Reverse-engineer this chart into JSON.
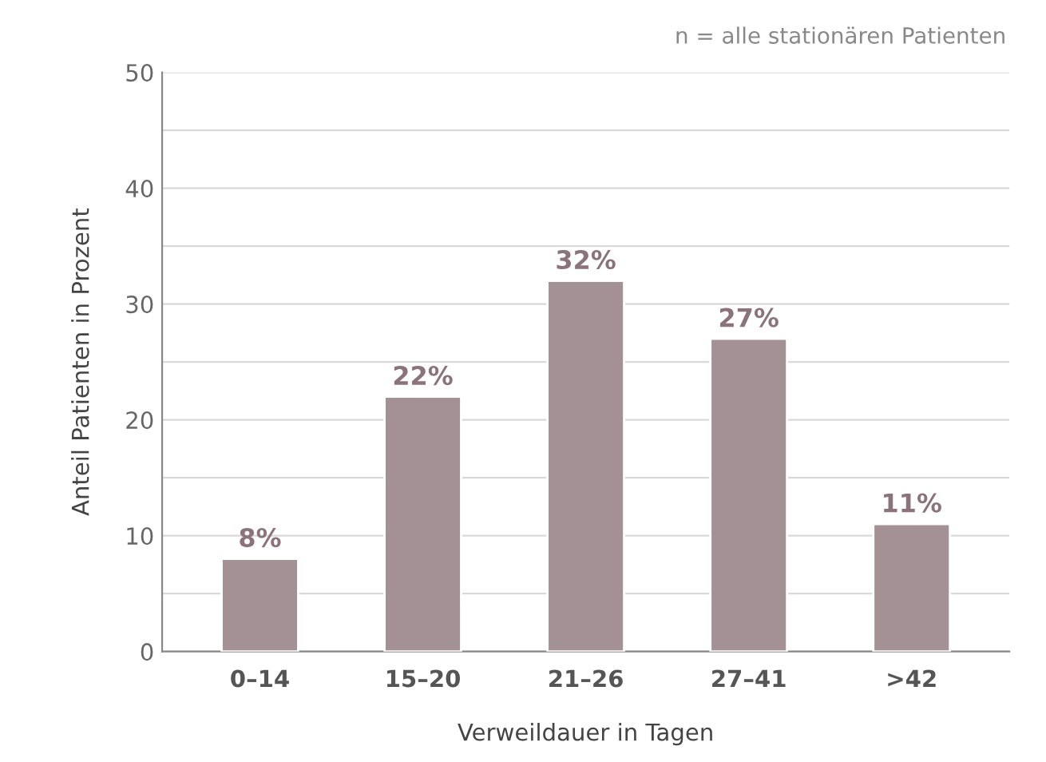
{
  "chart_data": {
    "type": "bar",
    "xlabel": "Verweildauer in Tagen",
    "ylabel": "Anteil Patienten in Prozent",
    "annotations": [
      "n = alle stationären Patienten"
    ],
    "categories": [
      "0–14",
      "15–20",
      "21–26",
      "27–41",
      ">42"
    ],
    "values": [
      8,
      22,
      32,
      27,
      11
    ],
    "value_labels": [
      "8%",
      "22%",
      "32%",
      "27%",
      "11%"
    ],
    "color": "#a39196",
    "ylim": [
      0,
      50
    ],
    "yticks": [
      0,
      {
        "value": 5,
        "label": null
      },
      10,
      {
        "value": 15,
        "label": null
      },
      20,
      {
        "value": 25,
        "label": null
      },
      30,
      {
        "value": 35,
        "label": null
      },
      40,
      {
        "value": 45,
        "label": null
      },
      50
    ],
    "grid": "y"
  }
}
